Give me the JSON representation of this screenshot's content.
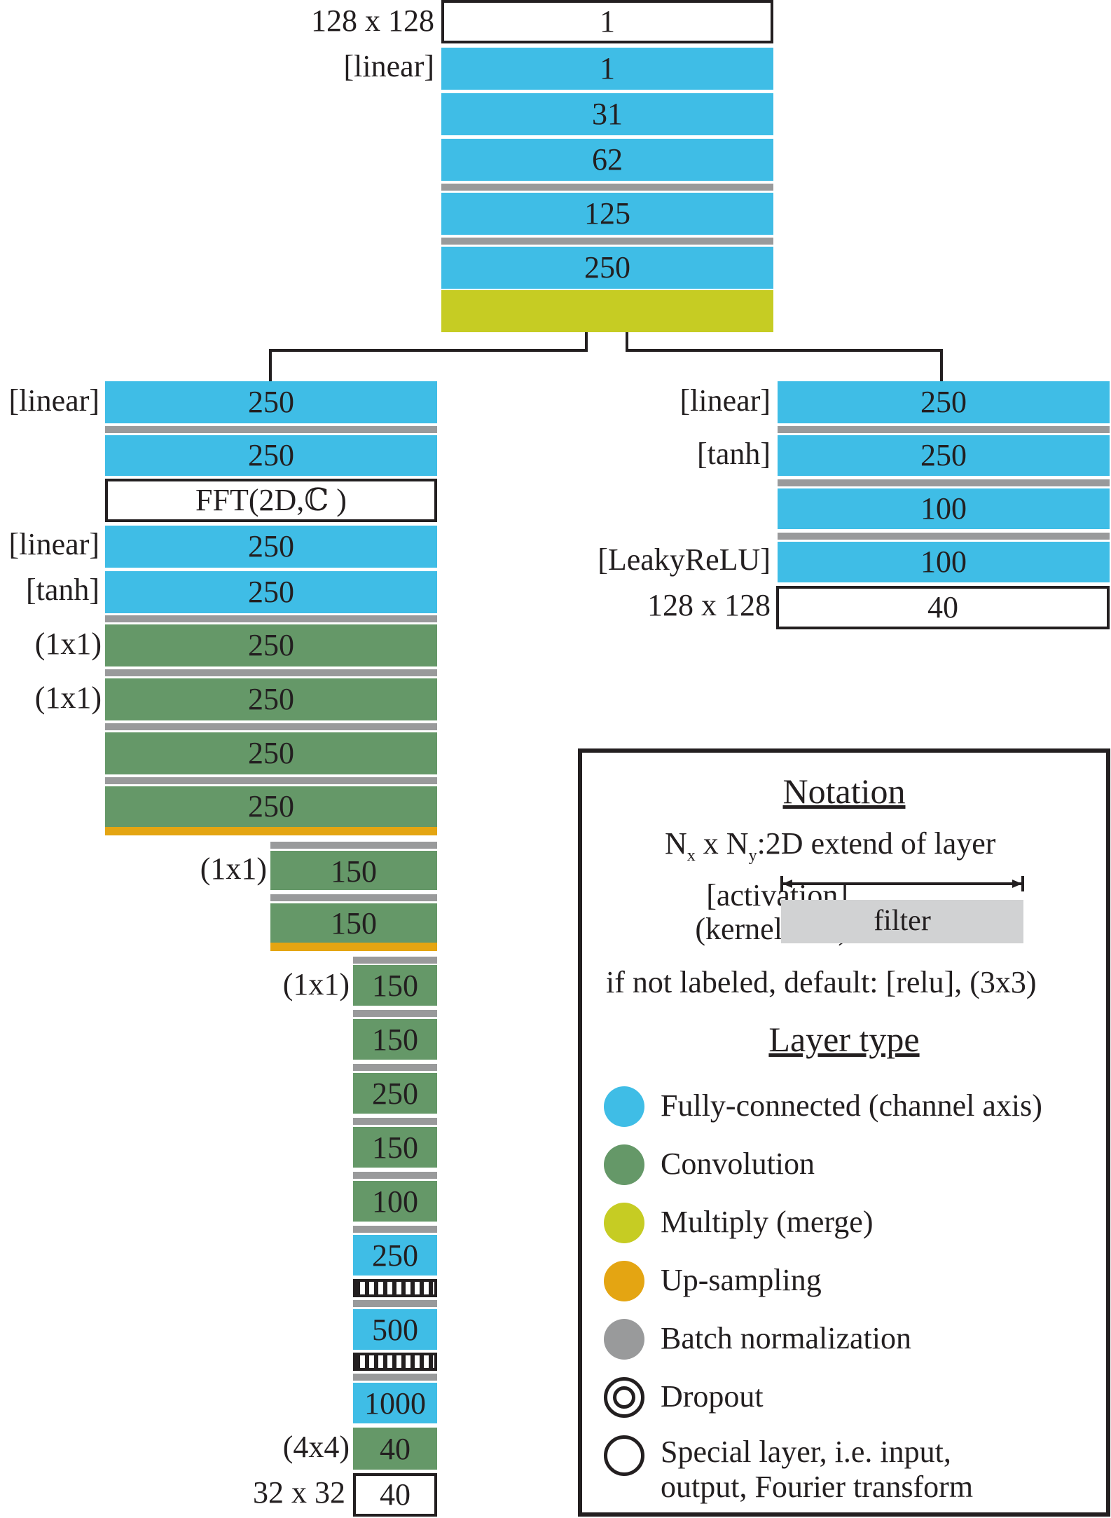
{
  "top": {
    "input": {
      "label": "128 x 128",
      "value": "1"
    },
    "fc1": {
      "label": "[linear]",
      "value": "1"
    },
    "fc2": "31",
    "fc3": "62",
    "fc4": "125",
    "fc5": "250"
  },
  "left": {
    "fc1": {
      "label": "[linear]",
      "value": "250"
    },
    "fc2": "250",
    "fft": "FFT(2D,ℂ )",
    "fc3": {
      "label": "[linear]",
      "value": "250"
    },
    "fc4": {
      "label": "[tanh]",
      "value": "250"
    },
    "c1": {
      "label": "(1x1)",
      "value": "250"
    },
    "c2": {
      "label": "(1x1)",
      "value": "250"
    },
    "c3": "250",
    "c4": "250",
    "c5": {
      "label": "(1x1)",
      "value": "150"
    },
    "c6": "150",
    "c7": {
      "label": "(1x1)",
      "value": "150"
    },
    "c8": "150",
    "c9": "250",
    "c10": "150",
    "c11": "100",
    "fc5": "250",
    "fc6": "500",
    "fc7": "1000",
    "c12": {
      "label": "(4x4)",
      "value": "40"
    },
    "output": {
      "label": "32 x 32",
      "value": "40"
    }
  },
  "right": {
    "fc1": {
      "label": "[linear]",
      "value": "250"
    },
    "fc2": {
      "label": "[tanh]",
      "value": "250"
    },
    "fc3": "100",
    "fc4": {
      "label": "[LeakyReLU]",
      "value": "100"
    },
    "output": {
      "label": "128 x 128",
      "value": "40"
    }
  },
  "legend": {
    "notation_title": "Notation",
    "extent_n": "N",
    "extent_x_sub": "x",
    "extent_times": " x N",
    "extent_y_sub": "y",
    "extent_desc": ":2D extend of layer",
    "activation": "[activation]",
    "kernel": "(kernel size)",
    "filter": "filter",
    "default_note": "if not labeled, default: [relu], (3x3)",
    "layer_type_title": "Layer type",
    "types": [
      {
        "label": "Fully-connected (channel axis)",
        "color": "#3fbde6"
      },
      {
        "label": "Convolution",
        "color": "#659868"
      },
      {
        "label": "Multiply (merge)",
        "color": "#c6cc23"
      },
      {
        "label": "Up-sampling",
        "color": "#e4a512"
      },
      {
        "label": "Batch normalization",
        "color": "#999a9b"
      },
      {
        "label": "Dropout",
        "color": "#231f20"
      },
      {
        "label": "Special layer, i.e. input,",
        "color": "#ffffff"
      }
    ],
    "special_line2": "output, Fourier transform"
  }
}
